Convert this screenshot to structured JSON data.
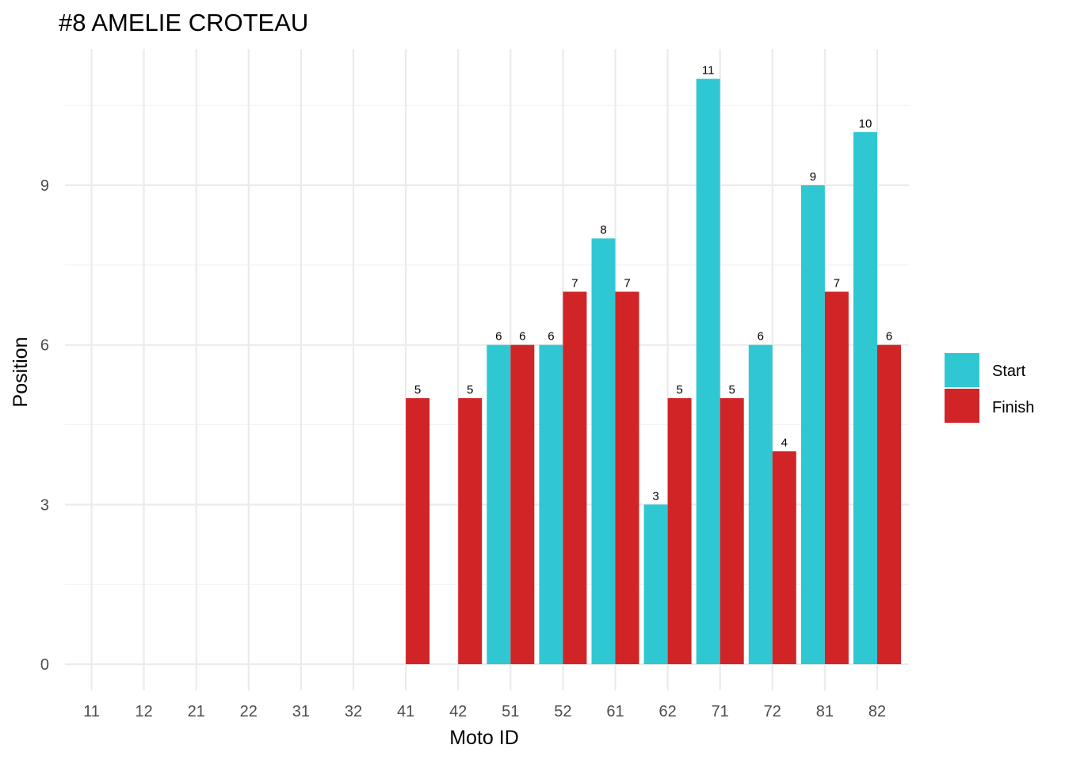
{
  "chart_data": {
    "type": "bar",
    "title": "#8 AMELIE CROTEAU",
    "xlabel": "Moto ID",
    "ylabel": "Position",
    "categories": [
      "11",
      "12",
      "21",
      "22",
      "31",
      "32",
      "41",
      "42",
      "51",
      "52",
      "61",
      "62",
      "71",
      "72",
      "81",
      "82"
    ],
    "series": [
      {
        "name": "Start",
        "color": "#2fc8d2",
        "values": [
          null,
          null,
          null,
          null,
          null,
          null,
          null,
          null,
          6,
          6,
          8,
          3,
          11,
          6,
          9,
          10
        ]
      },
      {
        "name": "Finish",
        "color": "#d12427",
        "values": [
          null,
          null,
          null,
          null,
          null,
          null,
          5,
          5,
          6,
          7,
          7,
          5,
          5,
          4,
          7,
          6
        ]
      }
    ],
    "ylim": [
      0,
      11
    ],
    "yticks": [
      "0",
      "3",
      "6",
      "9"
    ],
    "grid": true,
    "legend_position": "right",
    "show_data_labels": true
  }
}
